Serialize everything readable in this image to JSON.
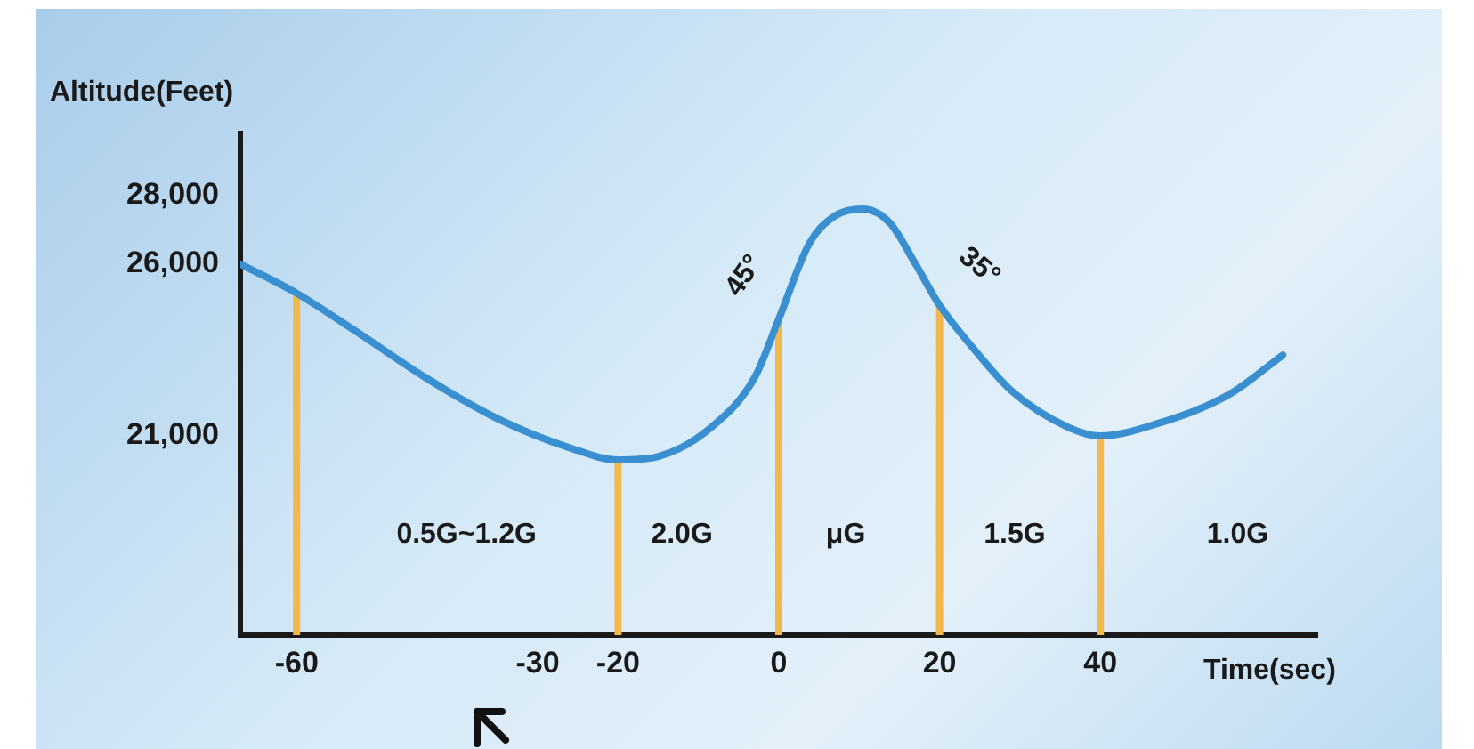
{
  "chart_data": {
    "type": "line",
    "xlabel": "Time(sec)",
    "ylabel": "Altitude(Feet)",
    "xlim": [
      -67,
      67
    ],
    "ylim": [
      15200,
      29800
    ],
    "xticks": [
      -60,
      -30,
      -20,
      0,
      20,
      40
    ],
    "yticks": [
      {
        "value": 21000,
        "label": "21,000"
      },
      {
        "value": 26000,
        "label": "26,000"
      },
      {
        "value": 28000,
        "label": "28,000"
      }
    ],
    "grid": false,
    "legend": false,
    "marker": "none",
    "line_style": "solid",
    "series": [
      {
        "color": "#3a8fd0",
        "x": [
          -67,
          -60,
          -53,
          -44,
          -35,
          -26,
          -20,
          -15,
          -8.4,
          -3,
          0,
          3.8,
          7,
          10.4,
          13.8,
          17,
          20,
          24,
          29,
          36,
          40,
          47,
          56,
          62.7
        ],
        "values": [
          26000,
          25150,
          24100,
          22700,
          21500,
          20650,
          20300,
          20400,
          21250,
          22700,
          24400,
          26600,
          27400,
          27600,
          27200,
          26000,
          24800,
          23600,
          22300,
          21250,
          21000,
          21350,
          22200,
          23350
        ]
      }
    ],
    "ref_lines": [
      {
        "axis": "x",
        "value": -60,
        "color": "#f2b84b"
      },
      {
        "axis": "x",
        "value": -20,
        "color": "#f2b84b"
      },
      {
        "axis": "x",
        "value": 0,
        "color": "#f2b84b"
      },
      {
        "axis": "x",
        "value": 20,
        "color": "#f2b84b"
      },
      {
        "axis": "x",
        "value": 40,
        "color": "#f2b84b"
      }
    ],
    "annotations": [
      "0.5G~1.2G",
      "2.0G",
      "μG",
      "1.5G",
      "1.0G",
      "45°",
      "35°"
    ]
  }
}
